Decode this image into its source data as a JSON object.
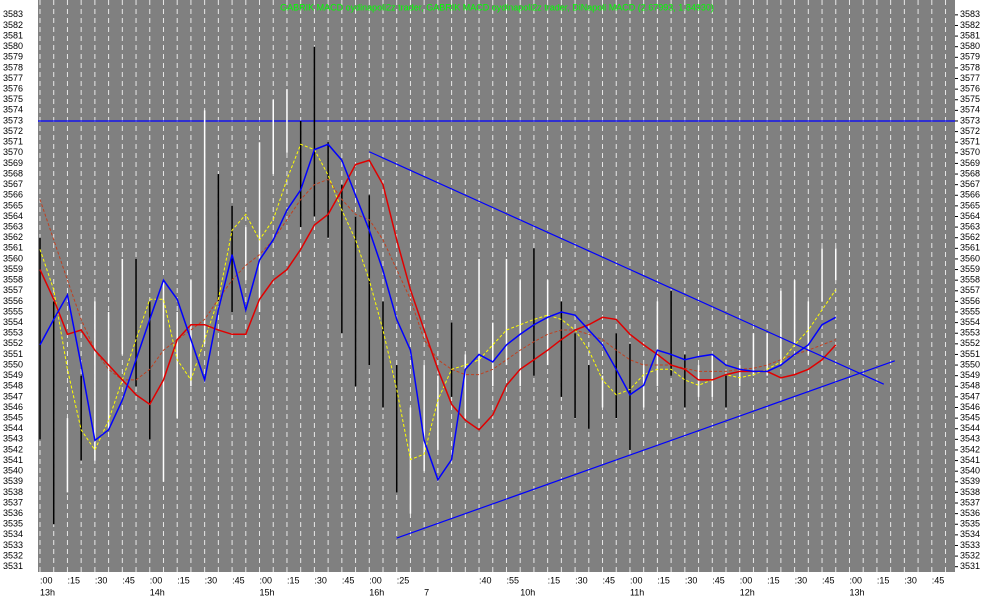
{
  "chart_data": {
    "type": "ohlc",
    "title": "GABRIK MACD oydinapoli2z trader, GABRIK MACD oydinapoli2z trader, DiNapoli MACD (2.67993, 1.84930)",
    "title_color": "#00ff00",
    "background": "#808080",
    "categories": [
      ":00",
      null,
      ":15",
      null,
      ":30",
      null,
      ":45",
      null,
      ":00",
      null,
      ":15",
      null,
      ":30",
      null,
      ":45",
      null,
      ":00",
      null,
      ":15",
      null,
      ":30",
      null,
      ":45",
      null,
      ":00",
      null,
      ":25",
      null,
      null,
      null,
      null,
      null,
      ":40",
      null,
      ":55",
      null,
      null,
      ":15",
      null,
      ":30",
      null,
      ":45",
      null,
      ":00",
      null,
      ":15",
      null,
      ":30",
      null,
      ":45",
      null,
      ":00",
      null,
      ":15",
      null,
      ":30",
      null,
      ":45",
      null,
      ":00",
      null,
      ":15",
      null,
      ":30",
      null,
      ":45",
      null
    ],
    "hours": [
      "13h",
      null,
      null,
      null,
      null,
      null,
      null,
      null,
      "14h",
      null,
      null,
      null,
      null,
      null,
      null,
      null,
      "15h",
      null,
      null,
      null,
      null,
      null,
      null,
      null,
      "16h",
      null,
      null,
      null,
      "7",
      null,
      null,
      null,
      null,
      null,
      null,
      "10h",
      null,
      null,
      null,
      null,
      null,
      null,
      null,
      "11h",
      null,
      null,
      null,
      null,
      null,
      null,
      null,
      "12h",
      null,
      null,
      null,
      null,
      null,
      null,
      null,
      "13h",
      null,
      null,
      null,
      null,
      null,
      null,
      null
    ],
    "ylim": [
      3530.5,
      3584.4
    ],
    "yticks": [
      3531,
      3532,
      3533,
      3534,
      3535,
      3536,
      3537,
      3538,
      3539,
      3540,
      3541,
      3542,
      3543,
      3544,
      3545,
      3546,
      3547,
      3548,
      3549,
      3550,
      3551,
      3552,
      3553,
      3554,
      3555,
      3556,
      3557,
      3558,
      3559,
      3560,
      3561,
      3562,
      3563,
      3564,
      3565,
      3566,
      3567,
      3568,
      3569,
      3570,
      3571,
      3572,
      3573,
      3574,
      3575,
      3576,
      3577,
      3578,
      3579,
      3580,
      3581,
      3582,
      3583
    ],
    "grid": true,
    "bars": {
      "high": [
        3562,
        3556,
        3545,
        3549,
        3556,
        3555,
        3560,
        3560,
        3556,
        3558,
        3555,
        3558,
        3574,
        3568,
        3565,
        3563,
        3571,
        3575,
        3576,
        3573,
        3580,
        3571,
        3567,
        3564,
        3566,
        3556,
        3550,
        3546,
        3550,
        3549,
        3554,
        3551,
        3560,
        3554,
        3560,
        3558,
        3561,
        3558,
        3556,
        3553,
        3550,
        3549,
        3553,
        3552,
        3550,
        3556,
        3557,
        3551,
        3550,
        3551,
        3549,
        3550,
        3553,
        3553,
        3557,
        3558,
        3556,
        3561,
        3561,
        null,
        null,
        null,
        null,
        null,
        null,
        null,
        null
      ],
      "low": [
        3543,
        3535,
        3538,
        3541,
        3541,
        3544,
        3551,
        3548,
        3543,
        3539,
        3545,
        3548,
        3552,
        3556,
        3555,
        3558,
        3555,
        3568,
        3570,
        3563,
        3564,
        3562,
        3553,
        3548,
        3550,
        3546,
        3538,
        3536,
        3540,
        3542,
        3547,
        3545,
        3545,
        3548,
        3550,
        3548,
        3549,
        3550,
        3547,
        3545,
        3544,
        3546,
        3545,
        3542,
        3546,
        3548,
        3549,
        3546,
        3547,
        3547,
        3546,
        3548,
        3549,
        3549,
        3550,
        3552,
        3551,
        3556,
        3558,
        null,
        null,
        null,
        null,
        null,
        null,
        null,
        null
      ],
      "colors": [
        "#000",
        "#000",
        "#fff",
        "#000",
        "#fff",
        "#fff",
        "#fff",
        "#000",
        "#000",
        "#fff",
        "#fff",
        "#fff",
        "#fff",
        "#000",
        "#000",
        "#fff",
        "#fff",
        "#fff",
        "#fff",
        "#000",
        "#000",
        "#000",
        "#000",
        "#000",
        "#000",
        "#000",
        "#000",
        "#fff",
        "#fff",
        "#fff",
        "#000",
        "#fff",
        "#fff",
        "#fff",
        "#fff",
        "#fff",
        "#000",
        "#fff",
        "#000",
        "#000",
        "#000",
        "#fff",
        "#000",
        "#000",
        "#fff",
        "#fff",
        "#000",
        "#000",
        "#fff",
        "#fff",
        "#000",
        "#fff",
        "#fff",
        "#fff",
        "#fff",
        "#fff",
        "#fff",
        "#fff",
        "#fff",
        null,
        null,
        null,
        null,
        null,
        null,
        null,
        null
      ]
    },
    "series": [
      {
        "color": "#c04020",
        "dash": true,
        "values": [
          3565.6,
          3561.8,
          3558.0,
          3554.3,
          3551.4,
          3549.6,
          3548.6,
          3548.6,
          3549.6,
          3551.4,
          3552.4,
          3553.3,
          3554.3,
          3556.2,
          3558.0,
          3559.4,
          3560.4,
          3561.8,
          3563.7,
          3565.6,
          3567.0,
          3567.5,
          3565.6,
          3564.2,
          3563.7,
          3561.8,
          3559.0,
          3556.2,
          3552.4,
          3550.5,
          3549.6,
          3549.1,
          3549.1,
          3549.6,
          3550.5,
          3551.4,
          3552.2,
          3552.9,
          3553.3,
          3553.3,
          3552.9,
          3552.4,
          3551.4,
          3550.5,
          3550.0,
          3550.0,
          3550.0,
          3549.7,
          3549.4,
          3549.4,
          3549.4,
          3549.6,
          3549.7,
          3550.0,
          3550.5,
          3551.0,
          3551.4,
          3551.9,
          3552.4,
          null,
          null,
          null,
          null,
          null,
          null,
          null,
          null
        ]
      },
      {
        "color": "#ffff00",
        "dash": true,
        "values": [
          3560.9,
          3557.1,
          3549.6,
          3543.9,
          3542.0,
          3544.8,
          3548.6,
          3552.4,
          3556.2,
          3556.2,
          3550.5,
          3548.6,
          3552.4,
          3556.2,
          3562.7,
          3564.2,
          3561.8,
          3563.7,
          3567.5,
          3570.8,
          3570.3,
          3567.9,
          3564.6,
          3561.8,
          3558.0,
          3553.3,
          3547.7,
          3541.1,
          3541.6,
          3546.7,
          3549.6,
          3550.0,
          3550.5,
          3551.9,
          3553.3,
          3553.8,
          3554.3,
          3554.7,
          3554.3,
          3553.3,
          3551.4,
          3548.6,
          3547.2,
          3547.7,
          3549.1,
          3549.6,
          3549.6,
          3548.6,
          3548.1,
          3548.6,
          3549.1,
          3548.8,
          3549.1,
          3549.6,
          3550.3,
          3551.9,
          3553.3,
          3555.2,
          3557.1,
          null,
          null,
          null,
          null,
          null,
          null,
          null,
          null
        ]
      },
      {
        "color": "#e00000",
        "dash": false,
        "values": [
          3559.0,
          3556.2,
          3552.9,
          3553.3,
          3551.4,
          3550.0,
          3548.6,
          3547.2,
          3546.3,
          3548.6,
          3552.4,
          3553.8,
          3553.8,
          3553.3,
          3552.9,
          3552.9,
          3556.2,
          3558.0,
          3559.0,
          3560.9,
          3563.2,
          3564.2,
          3566.5,
          3568.9,
          3569.3,
          3567.0,
          3561.8,
          3557.1,
          3553.3,
          3549.6,
          3546.3,
          3544.8,
          3543.9,
          3545.3,
          3548.1,
          3549.6,
          3550.5,
          3551.4,
          3552.4,
          3553.3,
          3553.8,
          3554.5,
          3554.3,
          3552.9,
          3551.9,
          3551.0,
          3550.0,
          3549.6,
          3548.6,
          3548.6,
          3549.1,
          3549.4,
          3549.4,
          3549.4,
          3548.8,
          3549.1,
          3549.6,
          3550.5,
          3551.9,
          null,
          null,
          null,
          null,
          null,
          null,
          null,
          null
        ]
      },
      {
        "color": "#0000ff",
        "dash": false,
        "values": [
          3551.9,
          3554.3,
          3556.6,
          3550.0,
          3542.9,
          3543.9,
          3546.7,
          3550.5,
          3554.3,
          3558.0,
          3556.2,
          3552.4,
          3548.6,
          3555.2,
          3560.4,
          3555.2,
          3559.9,
          3561.8,
          3564.6,
          3566.5,
          3570.3,
          3570.8,
          3569.3,
          3566.0,
          3562.7,
          3558.9,
          3554.3,
          3551.4,
          3542.9,
          3539.2,
          3541.1,
          3549.6,
          3551.0,
          3550.3,
          3551.9,
          3552.9,
          3553.8,
          3554.5,
          3555.0,
          3554.7,
          3553.3,
          3551.9,
          3549.6,
          3547.2,
          3548.1,
          3551.4,
          3551.0,
          3550.5,
          3550.8,
          3551.0,
          3550.0,
          3549.6,
          3549.4,
          3549.4,
          3550.0,
          3551.0,
          3551.9,
          3553.8,
          3554.5,
          null,
          null,
          null,
          null,
          null,
          null,
          null,
          null
        ]
      }
    ],
    "hline": {
      "value": 3573,
      "color": "#0000ff"
    },
    "trendlines": [
      {
        "color": "#0000ff",
        "x": [
          24,
          61.5
        ],
        "y": [
          3570.1,
          3548.2
        ]
      },
      {
        "color": "#0000ff",
        "x": [
          26,
          62.3
        ],
        "y": [
          3533.7,
          3550.4
        ]
      }
    ]
  }
}
